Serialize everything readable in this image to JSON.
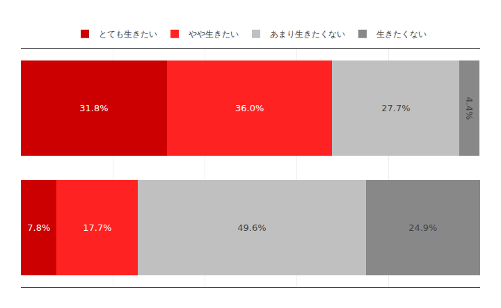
{
  "chart_data": {
    "type": "bar",
    "orientation": "horizontal",
    "stacked": true,
    "categories": [
      null,
      null
    ],
    "series": [
      {
        "name": "とても生きたい",
        "color": "#cc0000",
        "values": [
          31.8,
          7.8
        ],
        "value_labels": [
          "31.8%",
          "7.8%"
        ]
      },
      {
        "name": "やや生きたい",
        "color": "#ff2222",
        "values": [
          36.0,
          17.7
        ],
        "value_labels": [
          "36.0%",
          "17.7%"
        ]
      },
      {
        "name": "あまり生きたくない",
        "color": "#c0c0c0",
        "values": [
          27.7,
          49.6
        ],
        "value_labels": [
          "27.7%",
          "49.6%"
        ]
      },
      {
        "name": "生きたくない",
        "color": "#888888",
        "values": [
          4.4,
          24.9
        ],
        "value_labels": [
          "4.4%",
          "24.9%"
        ]
      }
    ],
    "xlim": [
      0,
      100
    ],
    "xticks": [
      0,
      20,
      40,
      60,
      80,
      100
    ],
    "grid": true,
    "data_labels": true,
    "tick_labels": false,
    "legend": "top"
  }
}
